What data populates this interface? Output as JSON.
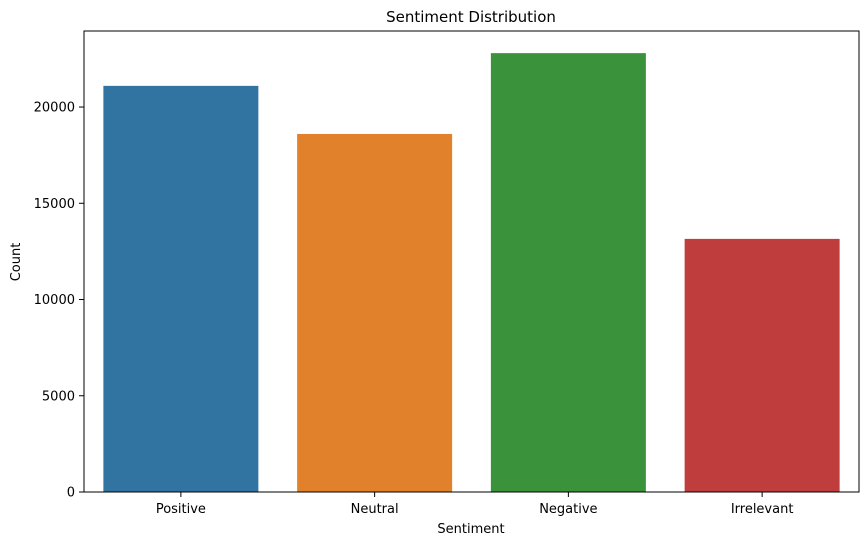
{
  "chart_data": {
    "type": "bar",
    "title": "Sentiment Distribution",
    "xlabel": "Sentiment",
    "ylabel": "Count",
    "categories": [
      "Positive",
      "Neutral",
      "Negative",
      "Irrelevant"
    ],
    "values": [
      21100,
      18600,
      22800,
      13150
    ],
    "colors": [
      "#3274a1",
      "#e1812c",
      "#3a923a",
      "#c03d3e"
    ],
    "ylim": [
      0,
      23950
    ],
    "yticks": [
      0,
      5000,
      10000,
      15000,
      20000
    ],
    "ytick_labels": [
      "0",
      "5000",
      "10000",
      "15000",
      "20000"
    ],
    "grid": false,
    "legend": "none"
  }
}
